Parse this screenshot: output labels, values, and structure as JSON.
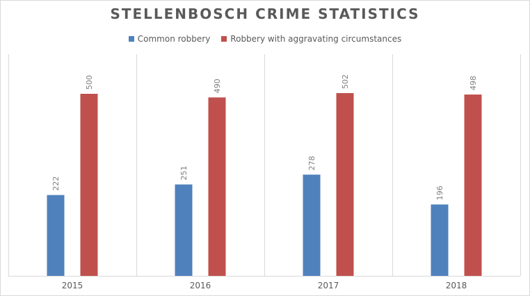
{
  "chart_data": {
    "type": "bar",
    "title": "STELLENBOSCH CRIME STATISTICS",
    "xlabel": "",
    "ylabel": "",
    "categories": [
      "2015",
      "2016",
      "2017",
      "2018"
    ],
    "series": [
      {
        "name": "Common robbery",
        "values": [
          222,
          251,
          278,
          196
        ],
        "color": "#4f81bd"
      },
      {
        "name": "Robbery with aggravating circumstances",
        "values": [
          500,
          490,
          502,
          498
        ],
        "color": "#c0504d"
      }
    ],
    "ylim": [
      0,
      500
    ],
    "grid": "vertical category separators",
    "legend_position": "top",
    "data_labels": "rotated, above bars"
  }
}
